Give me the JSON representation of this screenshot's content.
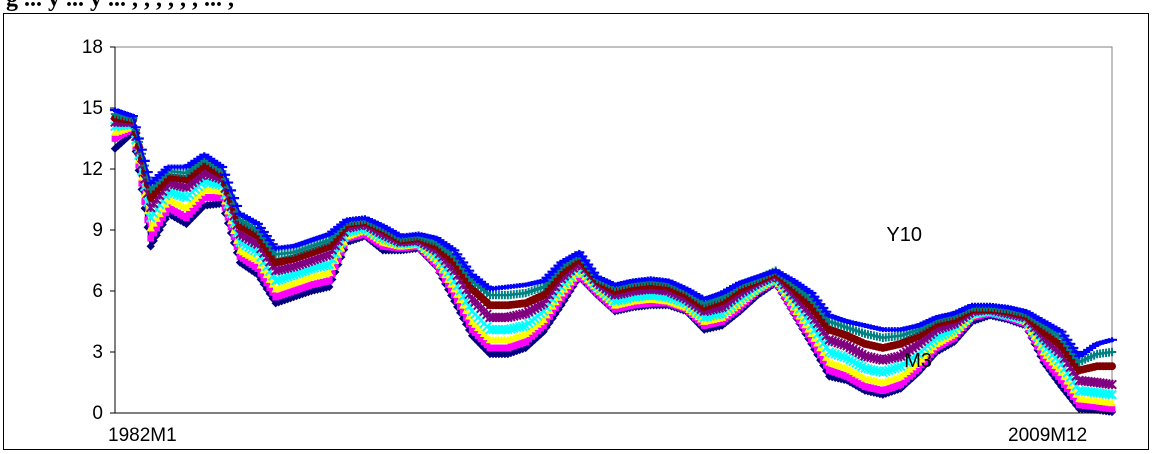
{
  "header": {
    "caption_fragment": "g ... y ... y ... , , , , , , ... ,"
  },
  "chart_data": {
    "type": "line",
    "title": "",
    "xlabel": "",
    "ylabel": "",
    "x_range": [
      "1982M1",
      "2009M12"
    ],
    "x_tick_labels": [
      "1982M1",
      "2009M12"
    ],
    "ylim": [
      0,
      18
    ],
    "y_ticks": [
      0,
      3,
      6,
      9,
      12,
      15,
      18
    ],
    "grid": false,
    "legend": "none",
    "annotations": [
      {
        "text": "Y10",
        "x": 2003.6,
        "y": 8.8
      },
      {
        "text": "M3",
        "x": 2004.1,
        "y": 2.6
      }
    ],
    "x": [
      1982.0,
      1982.5,
      1983.0,
      1983.5,
      1984.0,
      1984.5,
      1985.0,
      1985.5,
      1986.0,
      1986.5,
      1987.0,
      1987.5,
      1988.0,
      1988.5,
      1989.0,
      1989.5,
      1990.0,
      1990.5,
      1991.0,
      1991.5,
      1992.0,
      1992.5,
      1993.0,
      1993.5,
      1994.0,
      1994.5,
      1995.0,
      1995.5,
      1996.0,
      1996.5,
      1997.0,
      1997.5,
      1998.0,
      1998.5,
      1999.0,
      1999.5,
      2000.0,
      2000.5,
      2001.0,
      2001.5,
      2002.0,
      2002.5,
      2003.0,
      2003.5,
      2004.0,
      2004.5,
      2005.0,
      2005.5,
      2006.0,
      2006.5,
      2007.0,
      2007.5,
      2008.0,
      2008.5,
      2009.0,
      2009.5,
      2009.917
    ],
    "series": [
      {
        "color": "#000080",
        "marker": "diamond",
        "values": [
          13.0,
          13.8,
          8.2,
          9.8,
          9.3,
          10.2,
          10.3,
          7.4,
          6.8,
          5.4,
          5.7,
          6.0,
          6.2,
          8.4,
          8.7,
          8.0,
          8.0,
          8.1,
          7.2,
          5.5,
          3.8,
          2.9,
          2.9,
          3.2,
          4.0,
          5.3,
          6.7,
          5.8,
          5.0,
          5.2,
          5.3,
          5.3,
          5.0,
          4.1,
          4.3,
          5.0,
          5.8,
          6.4,
          4.9,
          3.4,
          1.8,
          1.6,
          1.1,
          0.9,
          1.2,
          2.0,
          3.0,
          3.5,
          4.5,
          4.8,
          4.6,
          4.3,
          2.5,
          1.3,
          0.2,
          0.15,
          0.05
        ]
      },
      {
        "color": "#ff00ff",
        "marker": "square",
        "values": [
          13.5,
          14.0,
          8.6,
          10.1,
          9.6,
          10.6,
          10.6,
          7.7,
          7.1,
          5.7,
          6.0,
          6.3,
          6.5,
          8.6,
          8.8,
          8.2,
          8.1,
          8.2,
          7.3,
          5.8,
          4.1,
          3.2,
          3.2,
          3.5,
          4.3,
          5.6,
          6.8,
          5.9,
          5.1,
          5.3,
          5.4,
          5.4,
          5.1,
          4.3,
          4.5,
          5.2,
          6.0,
          6.5,
          5.0,
          3.6,
          2.1,
          1.8,
          1.3,
          1.1,
          1.4,
          2.2,
          3.2,
          3.7,
          4.7,
          4.9,
          4.7,
          4.4,
          2.7,
          1.6,
          0.4,
          0.3,
          0.2
        ]
      },
      {
        "color": "#ffff00",
        "marker": "triangle",
        "values": [
          13.8,
          14.1,
          9.1,
          10.5,
          10.1,
          11.0,
          10.9,
          8.0,
          7.5,
          6.1,
          6.4,
          6.7,
          6.9,
          8.7,
          9.0,
          8.4,
          8.2,
          8.3,
          7.5,
          6.1,
          4.5,
          3.6,
          3.6,
          3.9,
          4.6,
          5.9,
          7.0,
          6.1,
          5.3,
          5.5,
          5.6,
          5.5,
          5.2,
          4.5,
          4.7,
          5.4,
          6.1,
          6.6,
          5.2,
          3.9,
          2.5,
          2.2,
          1.7,
          1.5,
          1.8,
          2.5,
          3.4,
          3.9,
          4.8,
          5.0,
          4.8,
          4.5,
          3.0,
          2.0,
          0.7,
          0.6,
          0.5
        ]
      },
      {
        "color": "#00ffff",
        "marker": "x",
        "values": [
          14.1,
          14.2,
          9.6,
          10.9,
          10.6,
          11.4,
          11.2,
          8.4,
          7.9,
          6.5,
          6.8,
          7.1,
          7.3,
          8.9,
          9.1,
          8.6,
          8.3,
          8.4,
          7.7,
          6.5,
          5.0,
          4.1,
          4.1,
          4.3,
          5.0,
          6.2,
          7.2,
          6.2,
          5.5,
          5.7,
          5.8,
          5.7,
          5.4,
          4.7,
          4.9,
          5.6,
          6.2,
          6.7,
          5.5,
          4.3,
          3.0,
          2.7,
          2.2,
          2.0,
          2.3,
          2.9,
          3.7,
          4.1,
          4.9,
          5.0,
          4.8,
          4.6,
          3.3,
          2.4,
          1.1,
          1.0,
          0.9
        ]
      },
      {
        "color": "#800080",
        "marker": "star",
        "values": [
          14.3,
          14.3,
          10.1,
          11.3,
          11.1,
          11.8,
          11.5,
          8.8,
          8.3,
          7.0,
          7.2,
          7.5,
          7.8,
          9.1,
          9.3,
          8.8,
          8.4,
          8.5,
          8.0,
          7.0,
          5.6,
          4.7,
          4.7,
          4.9,
          5.4,
          6.6,
          7.4,
          6.4,
          5.8,
          6.0,
          6.1,
          6.0,
          5.6,
          5.0,
          5.2,
          5.9,
          6.4,
          6.8,
          5.8,
          4.8,
          3.6,
          3.3,
          2.8,
          2.6,
          2.8,
          3.4,
          4.1,
          4.4,
          5.0,
          5.1,
          4.9,
          4.7,
          3.7,
          2.9,
          1.6,
          1.5,
          1.4
        ]
      },
      {
        "color": "#800000",
        "marker": "circle",
        "values": [
          14.5,
          14.4,
          10.6,
          11.6,
          11.5,
          12.2,
          11.7,
          9.2,
          8.7,
          7.4,
          7.6,
          7.9,
          8.2,
          9.3,
          9.4,
          9.0,
          8.5,
          8.6,
          8.2,
          7.4,
          6.1,
          5.3,
          5.3,
          5.4,
          5.8,
          6.9,
          7.6,
          6.5,
          6.0,
          6.2,
          6.3,
          6.2,
          5.8,
          5.2,
          5.5,
          6.1,
          6.5,
          6.9,
          6.1,
          5.2,
          4.1,
          3.8,
          3.4,
          3.2,
          3.4,
          3.8,
          4.4,
          4.6,
          5.1,
          5.1,
          5.0,
          4.8,
          4.0,
          3.3,
          2.1,
          2.3,
          2.3
        ]
      },
      {
        "color": "#008080",
        "marker": "plus",
        "values": [
          14.7,
          14.5,
          11.0,
          11.9,
          11.8,
          12.5,
          11.9,
          9.5,
          9.0,
          7.8,
          7.9,
          8.2,
          8.5,
          9.4,
          9.5,
          9.1,
          8.6,
          8.7,
          8.4,
          7.7,
          6.5,
          5.8,
          5.8,
          5.9,
          6.2,
          7.2,
          7.8,
          6.6,
          6.2,
          6.4,
          6.5,
          6.4,
          6.0,
          5.4,
          5.7,
          6.3,
          6.6,
          7.0,
          6.3,
          5.6,
          4.5,
          4.2,
          3.9,
          3.7,
          3.8,
          4.1,
          4.6,
          4.8,
          5.2,
          5.2,
          5.1,
          4.9,
          4.3,
          3.7,
          2.5,
          2.9,
          3.0
        ]
      },
      {
        "color": "#0000ff",
        "marker": "dash",
        "values": [
          14.9,
          14.6,
          11.3,
          12.1,
          12.1,
          12.7,
          12.1,
          9.8,
          9.3,
          8.1,
          8.2,
          8.5,
          8.8,
          9.5,
          9.6,
          9.2,
          8.7,
          8.8,
          8.6,
          8.0,
          6.8,
          6.1,
          6.2,
          6.3,
          6.5,
          7.4,
          7.9,
          6.7,
          6.3,
          6.5,
          6.6,
          6.5,
          6.1,
          5.6,
          5.9,
          6.4,
          6.7,
          7.0,
          6.5,
          5.9,
          4.8,
          4.5,
          4.3,
          4.1,
          4.1,
          4.3,
          4.7,
          4.9,
          5.3,
          5.3,
          5.2,
          5.0,
          4.5,
          4.0,
          2.8,
          3.4,
          3.6
        ]
      }
    ]
  }
}
